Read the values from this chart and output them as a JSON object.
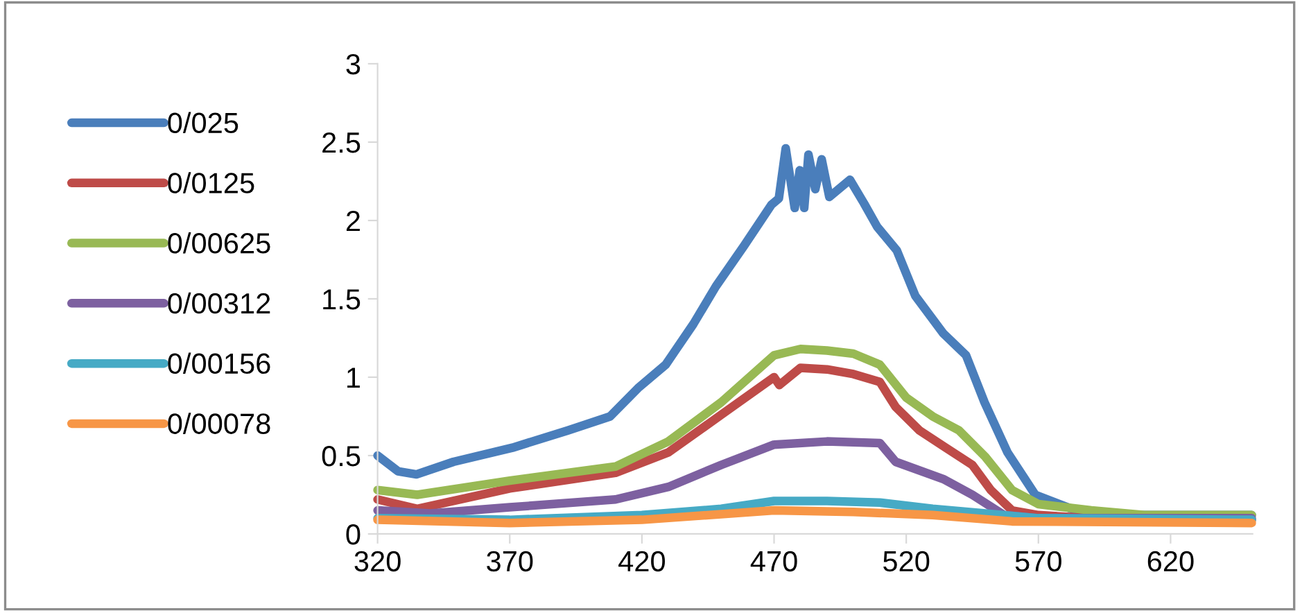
{
  "chart_data": {
    "type": "line",
    "xlim": [
      320,
      651
    ],
    "xticks": [
      320,
      370,
      420,
      470,
      520,
      570,
      620
    ],
    "ylim": [
      0,
      3
    ],
    "yticks": [
      0,
      0.5,
      1,
      1.5,
      2,
      2.5,
      3
    ],
    "grid": false,
    "legend": "left",
    "marker": "none",
    "line_style": "solid",
    "series": [
      {
        "name": "0/025",
        "color": "#4a7ebb",
        "x": [
          320,
          327.7,
          334.7,
          348.7,
          371,
          392,
          408,
          418.5,
          429,
          439.5,
          448,
          458.7,
          469,
          471.8,
          474.4,
          477.8,
          479.7,
          481.4,
          483,
          485.6,
          488,
          490.9,
          498.7,
          504,
          509,
          516.4,
          523.4,
          534,
          542.6,
          549.6,
          558.3,
          568.8,
          582.6,
          603.6,
          650.7
        ],
        "values": [
          0.5,
          0.4,
          0.38,
          0.46,
          0.55,
          0.66,
          0.75,
          0.93,
          1.08,
          1.34,
          1.58,
          1.84,
          2.1,
          2.14,
          2.46,
          2.08,
          2.32,
          2.08,
          2.42,
          2.2,
          2.39,
          2.15,
          2.26,
          2.11,
          1.96,
          1.81,
          1.52,
          1.28,
          1.14,
          0.84,
          0.52,
          0.25,
          0.16,
          0.12,
          0.12
        ]
      },
      {
        "name": "0/0125",
        "color": "#be4b48",
        "x": [
          320,
          335,
          370,
          410,
          430,
          450,
          470,
          472,
          480,
          490,
          500,
          510,
          516,
          525,
          535,
          545,
          552,
          560,
          570,
          590,
          650.7
        ],
        "values": [
          0.22,
          0.16,
          0.29,
          0.39,
          0.52,
          0.76,
          1.0,
          0.95,
          1.06,
          1.05,
          1.02,
          0.97,
          0.81,
          0.66,
          0.55,
          0.44,
          0.28,
          0.15,
          0.12,
          0.1,
          0.09
        ]
      },
      {
        "name": "0/00625",
        "color": "#98b954",
        "x": [
          320,
          335,
          370,
          410,
          430,
          450,
          470,
          480,
          490,
          500,
          510,
          520,
          530,
          540,
          550,
          560,
          570,
          590,
          610,
          650.7
        ],
        "values": [
          0.28,
          0.25,
          0.34,
          0.43,
          0.59,
          0.84,
          1.14,
          1.18,
          1.17,
          1.15,
          1.08,
          0.87,
          0.75,
          0.66,
          0.49,
          0.28,
          0.19,
          0.15,
          0.12,
          0.12
        ]
      },
      {
        "name": "0/00312",
        "color": "#7d60a0",
        "x": [
          320,
          340,
          370,
          410,
          430,
          450,
          470,
          490,
          510,
          516,
          534,
          545,
          557,
          570,
          600,
          650.7
        ],
        "values": [
          0.15,
          0.13,
          0.17,
          0.22,
          0.3,
          0.44,
          0.57,
          0.59,
          0.58,
          0.46,
          0.35,
          0.25,
          0.12,
          0.1,
          0.1,
          0.1
        ]
      },
      {
        "name": "0/00156",
        "color": "#46aac5",
        "x": [
          320,
          370,
          420,
          450,
          470,
          490,
          510,
          530,
          550,
          570,
          650.7
        ],
        "values": [
          0.1,
          0.09,
          0.12,
          0.16,
          0.21,
          0.21,
          0.2,
          0.16,
          0.13,
          0.1,
          0.09
        ]
      },
      {
        "name": "0/00078",
        "color": "#f79646",
        "x": [
          320,
          370,
          420,
          470,
          500,
          530,
          560,
          650.7
        ],
        "values": [
          0.09,
          0.07,
          0.09,
          0.15,
          0.14,
          0.12,
          0.08,
          0.07
        ]
      }
    ]
  }
}
